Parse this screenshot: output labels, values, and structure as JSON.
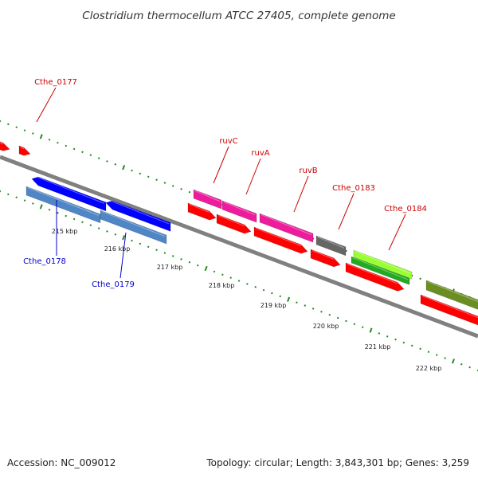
{
  "title": "Clostridium thermocellum ATCC 27405, complete genome",
  "footer": {
    "accession": "Accession: NC_009012",
    "summary": "Topology: circular; Length: 3,843,301 bp; Genes: 3,259"
  },
  "colors": {
    "backbone": "#808080",
    "dots": "#228B22",
    "label_red": "#cc0000",
    "label_blue": "#0000cc"
  },
  "kbp_labels": [
    "215 kbp",
    "216 kbp",
    "217 kbp",
    "218 kbp",
    "219 kbp",
    "220 kbp",
    "221 kbp",
    "222 kbp"
  ],
  "gene_labels": [
    {
      "text": "Cthe_0177",
      "color": "#cc0000"
    },
    {
      "text": "ruvC",
      "color": "#cc0000"
    },
    {
      "text": "ruvA",
      "color": "#cc0000"
    },
    {
      "text": "ruvB",
      "color": "#cc0000"
    },
    {
      "text": "Cthe_0183",
      "color": "#cc0000"
    },
    {
      "text": "Cthe_0184",
      "color": "#cc0000"
    },
    {
      "text": "Cthe_0178",
      "color": "#0000cc"
    },
    {
      "text": "Cthe_0179",
      "color": "#0000cc"
    }
  ],
  "features": [
    {
      "name": "red-arrow-cds",
      "color": "#ff0000"
    },
    {
      "name": "red-arrow-small-cds",
      "color": "#ff0000"
    },
    {
      "name": "Cthe_0177-blue-cds",
      "color": "#0000ff"
    },
    {
      "name": "Cthe_0178-blue-cds",
      "color": "#0000ff"
    },
    {
      "name": "Cthe_0178-steelblue-gene",
      "color": "#4f86c6"
    },
    {
      "name": "Cthe_0179-steelblue-gene",
      "color": "#4f86c6"
    },
    {
      "name": "ruvC-magenta-gene",
      "color": "#ee1c9c"
    },
    {
      "name": "ruvA-magenta-gene",
      "color": "#ee1c9c"
    },
    {
      "name": "ruvB-magenta-gene",
      "color": "#ee1c9c"
    },
    {
      "name": "ruvC-red-cds",
      "color": "#ff0000"
    },
    {
      "name": "ruvA-red-cds",
      "color": "#ff0000"
    },
    {
      "name": "ruvB-red-cds",
      "color": "#ff0000"
    },
    {
      "name": "Cthe_0183-gray-gene",
      "color": "#666666"
    },
    {
      "name": "Cthe_0183-red-cds",
      "color": "#ff0000"
    },
    {
      "name": "Cthe_0184-lime-gene",
      "color": "#99ff33"
    },
    {
      "name": "Cthe_0184-green-cds",
      "color": "#22aa22"
    },
    {
      "name": "Cthe_0184-red-cds",
      "color": "#ff0000"
    },
    {
      "name": "olive-gene",
      "color": "#6b8e23"
    },
    {
      "name": "olive-red-cds",
      "color": "#ff0000"
    }
  ]
}
